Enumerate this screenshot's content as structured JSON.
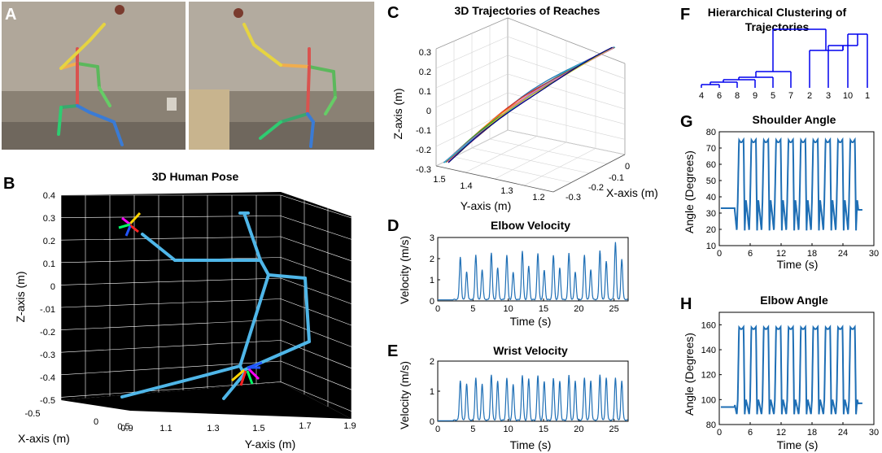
{
  "colors": {
    "trace": "#1f6fb5",
    "skeleton": "#4fb6e8",
    "pose_background": "#000000",
    "grid": "#ffffff",
    "dendrogram": "#0000ee",
    "traj_colors": [
      "#1f77b4",
      "#d62728",
      "#ff7f0e",
      "#2ca02c",
      "#9467bd",
      "#17becf",
      "#8c564b",
      "#e377c2",
      "#bcbd22",
      "#000080"
    ]
  },
  "panels": {
    "A": {
      "letter": "A"
    },
    "B": {
      "letter": "B",
      "title": "3D Human Pose",
      "xlabel": "X-axis (m)",
      "ylabel": "Y-axis (m)",
      "zlabel": "Z-axis (m)",
      "zticks": [
        "0.4",
        "0.3",
        "0.2",
        "0.1",
        "0",
        "-.01",
        "-0.2",
        "-0.3",
        "-0.4",
        "-0.5"
      ],
      "xticks": [
        "-0.5",
        "0",
        "0.5"
      ],
      "yticks": [
        "0.9",
        "1.1",
        "1.3",
        "1.5",
        "1.7",
        "1.9"
      ]
    },
    "C": {
      "letter": "C",
      "title": "3D Trajectories of Reaches",
      "xlabel": "X-axis (m)",
      "ylabel": "Y-axis (m)",
      "zlabel": "Z-axis (m)",
      "zticks": [
        "0.3",
        "0.2",
        "0.1",
        "0",
        "-0.1",
        "-0.2",
        "-0.3"
      ],
      "yticks": [
        "1.5",
        "1.4",
        "1.3",
        "1.2"
      ],
      "xticks": [
        "0",
        "-0.1",
        "-0.2",
        "-0.3"
      ]
    },
    "D": {
      "letter": "D",
      "title": "Elbow Velocity",
      "xlabel": "Time (s)",
      "ylabel": "Velocity (m/s)"
    },
    "E": {
      "letter": "E",
      "title": "Wrist Velocity",
      "xlabel": "Time (s)",
      "ylabel": "Velocity (m/s)"
    },
    "F": {
      "letter": "F",
      "title_line1": "Hierarchical Clustering of",
      "title_line2": "Trajectories"
    },
    "G": {
      "letter": "G",
      "title": "Shoulder Angle",
      "xlabel": "Time (s)",
      "ylabel": "Angle (Degrees)"
    },
    "H": {
      "letter": "H",
      "title": "Elbow Angle",
      "xlabel": "Time (s)",
      "ylabel": "Angle (Degrees)"
    }
  },
  "chart_data": [
    {
      "type": "line",
      "panel": "D",
      "title": "Elbow Velocity",
      "xlabel": "Time (s)",
      "ylabel": "Velocity (m/s)",
      "xlim": [
        0,
        27
      ],
      "ylim": [
        0,
        3
      ],
      "xticks": [
        0,
        5,
        10,
        15,
        20,
        25
      ],
      "yticks": [
        0,
        1,
        2,
        3
      ],
      "series": [
        {
          "peaks_x": [
            3.2,
            4.1,
            5.4,
            6.3,
            7.6,
            8.5,
            9.8,
            10.7,
            12.0,
            12.9,
            14.2,
            15.1,
            16.4,
            17.3,
            18.6,
            19.5,
            20.8,
            21.7,
            23.0,
            23.9,
            25.2,
            26.1
          ],
          "peaks_y": [
            2.0,
            1.3,
            2.1,
            1.4,
            2.2,
            1.5,
            2.1,
            1.3,
            2.3,
            1.6,
            2.2,
            1.4,
            2.1,
            1.5,
            2.2,
            1.3,
            2.1,
            1.4,
            2.3,
            1.8,
            2.7,
            1.9
          ],
          "baseline": 0.05
        }
      ]
    },
    {
      "type": "line",
      "panel": "E",
      "title": "Wrist Velocity",
      "xlabel": "Time (s)",
      "ylabel": "Velocity (m/s)",
      "xlim": [
        0,
        27
      ],
      "ylim": [
        0,
        2
      ],
      "xticks": [
        0,
        5,
        10,
        15,
        20,
        25
      ],
      "yticks": [
        0,
        1,
        2
      ],
      "series": [
        {
          "peaks_x": [
            3.2,
            4.1,
            5.4,
            6.3,
            7.6,
            8.5,
            9.8,
            10.7,
            12.0,
            12.9,
            14.2,
            15.1,
            16.4,
            17.3,
            18.6,
            19.5,
            20.8,
            21.7,
            23.0,
            23.9,
            25.2,
            26.1
          ],
          "peaks_y": [
            1.3,
            1.2,
            1.4,
            1.2,
            1.5,
            1.3,
            1.4,
            1.2,
            1.5,
            1.4,
            1.5,
            1.3,
            1.4,
            1.3,
            1.5,
            1.3,
            1.4,
            1.3,
            1.5,
            1.4,
            1.4,
            1.3
          ],
          "baseline": 0.02
        }
      ]
    },
    {
      "type": "line",
      "panel": "G",
      "title": "Shoulder Angle",
      "xlabel": "Time (s)",
      "ylabel": "Angle (Degrees)",
      "xlim": [
        0,
        30
      ],
      "ylim": [
        10,
        80
      ],
      "xticks": [
        0,
        6,
        12,
        18,
        24,
        30
      ],
      "yticks": [
        10,
        20,
        30,
        40,
        50,
        60,
        70,
        80
      ],
      "series": [
        {
          "rest": 33,
          "rest_end": 3,
          "end_start": 27,
          "end_rest": 32,
          "cycle_starts": [
            3.4,
            5.8,
            8.2,
            10.6,
            13.0,
            15.4,
            17.8,
            20.2,
            22.6,
            25.0
          ],
          "high": 75,
          "low": 19,
          "bump": 38
        }
      ]
    },
    {
      "type": "line",
      "panel": "H",
      "title": "Elbow Angle",
      "xlabel": "Time (s)",
      "ylabel": "Angle (Degrees)",
      "xlim": [
        0,
        30
      ],
      "ylim": [
        80,
        170
      ],
      "xticks": [
        0,
        6,
        12,
        18,
        24,
        30
      ],
      "yticks": [
        80,
        100,
        120,
        140,
        160
      ],
      "series": [
        {
          "rest": 94,
          "rest_end": 3,
          "end_start": 27,
          "end_rest": 97,
          "cycle_starts": [
            3.4,
            5.8,
            8.2,
            10.6,
            13.0,
            15.4,
            17.8,
            20.2,
            22.6,
            25.0
          ],
          "high": 158,
          "low": 88,
          "bump": 100
        }
      ]
    },
    {
      "type": "line",
      "panel": "C",
      "title": "3D Trajectories of Reaches",
      "zlim": [
        -0.3,
        0.3
      ],
      "ylim": [
        1.2,
        1.5
      ],
      "xlim": [
        -0.3,
        0.0
      ],
      "series_count": 10
    },
    {
      "type": "table",
      "panel": "F",
      "title": "Hierarchical Clustering of Trajectories",
      "leaves": [
        "4",
        "6",
        "8",
        "9",
        "5",
        "7",
        "2",
        "3",
        "10",
        "1"
      ]
    }
  ]
}
